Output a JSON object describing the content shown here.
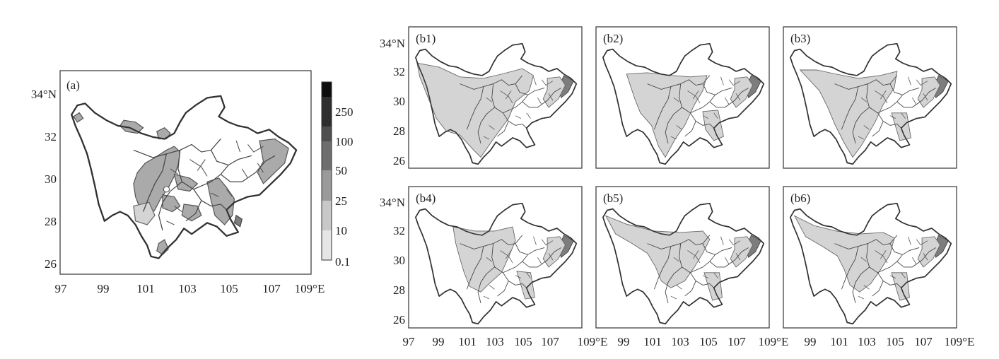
{
  "panels": [
    {
      "id": "a",
      "label": "(a)"
    },
    {
      "id": "b1",
      "label": "(b1)"
    },
    {
      "id": "b2",
      "label": "(b2)"
    },
    {
      "id": "b3",
      "label": "(b3)"
    },
    {
      "id": "b4",
      "label": "(b4)"
    },
    {
      "id": "b5",
      "label": "(b5)"
    },
    {
      "id": "b6",
      "label": "(b6)"
    }
  ],
  "axes": {
    "lat_ticks": [
      "34°N",
      "32",
      "30",
      "28",
      "26"
    ],
    "lon_ticks_main": [
      "97",
      "99",
      "101",
      "103",
      "105",
      "107",
      "109°E"
    ],
    "lon_ticks_right": [
      "99",
      "101",
      "103",
      "105",
      "107",
      "109°E"
    ]
  },
  "colorbar": {
    "levels": [
      "250",
      "100",
      "50",
      "25",
      "10",
      "0.1"
    ],
    "colors": [
      "#0d0d0d",
      "#2e2e2e",
      "#4f4f4f",
      "#6e6e6e",
      "#9a9a9a",
      "#c8c8c8",
      "#e6e6e6"
    ]
  },
  "shading": {
    "light": "#d4d4d4",
    "medium": "#aaaaaa",
    "dark": "#7d7d7d"
  }
}
